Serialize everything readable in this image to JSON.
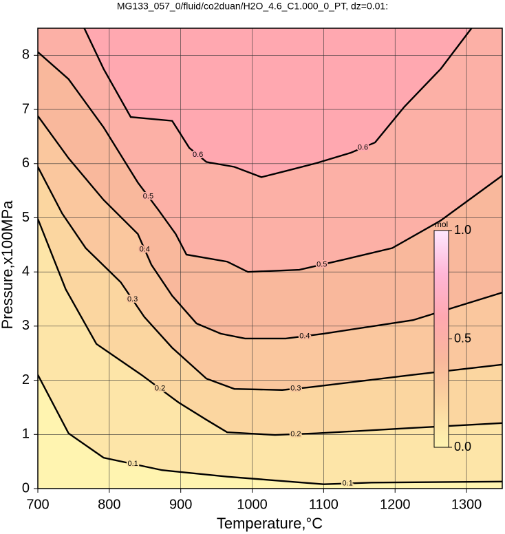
{
  "chart_data": {
    "type": "contour",
    "title": "MG133_057_0/fluid/co2duan/H2O_4.6_C1.000_0_PT, dz=0.01:",
    "xlabel": "Temperature,°C",
    "ylabel": "Pressure,x100MPa",
    "xlim": [
      700,
      1350
    ],
    "ylim": [
      0,
      8.5
    ],
    "xticks": [
      700,
      800,
      900,
      1000,
      1100,
      1200,
      1300
    ],
    "yticks": [
      0,
      1,
      2,
      3,
      4,
      5,
      6,
      7,
      8
    ],
    "grid": true,
    "colormap": [
      "#fff4b0",
      "#fbd6a0",
      "#f9b89c",
      "#ffa8b0",
      "#ffb6d6",
      "#ffe8ff"
    ],
    "colorbar": {
      "label": "mol",
      "lim": [
        0,
        1
      ],
      "ticks": [
        {
          "value": 0,
          "label": "0.0"
        },
        0.5,
        {
          "value": 1,
          "label": "1.0"
        }
      ]
    },
    "contours": [
      {
        "level": 0.1,
        "x": [
          700,
          743,
          792,
          874,
          965,
          1052,
          1100,
          1167,
          1350
        ],
        "y": [
          2.1,
          1.02,
          0.57,
          0.34,
          0.22,
          0.13,
          0.08,
          0.11,
          0.13
        ]
      },
      {
        "level": 0.2,
        "x": [
          700,
          739,
          782,
          845,
          897,
          936,
          965,
          1032,
          1090,
          1225,
          1350
        ],
        "y": [
          4.98,
          3.68,
          2.67,
          2.1,
          1.59,
          1.27,
          1.04,
          0.99,
          1.02,
          1.12,
          1.21
        ]
      },
      {
        "level": 0.3,
        "x": [
          700,
          734,
          767,
          816,
          849,
          888,
          936,
          975,
          1042,
          1080,
          1225,
          1350
        ],
        "y": [
          5.94,
          5.08,
          4.44,
          3.81,
          3.17,
          2.6,
          2.03,
          1.84,
          1.82,
          1.87,
          2.1,
          2.29
        ]
      },
      {
        "level": 0.4,
        "x": [
          700,
          743,
          792,
          840,
          859,
          888,
          922,
          956,
          990,
          1047,
          1100,
          1225,
          1350
        ],
        "y": [
          6.88,
          6.1,
          5.33,
          4.7,
          4.13,
          3.56,
          3.05,
          2.86,
          2.77,
          2.77,
          2.86,
          3.11,
          3.62
        ]
      },
      {
        "level": 0.5,
        "x": [
          700,
          743,
          792,
          840,
          869,
          893,
          908,
          965,
          994,
          1066,
          1129,
          1196,
          1264,
          1350
        ],
        "y": [
          8.06,
          7.56,
          6.67,
          5.65,
          5.14,
          4.7,
          4.32,
          4.19,
          4.0,
          4.04,
          4.23,
          4.44,
          4.95,
          5.78
        ]
      },
      {
        "level": 0.6,
        "x": [
          765,
          792,
          830,
          888,
          912,
          936,
          975,
          1013,
          1052,
          1090,
          1138,
          1172,
          1213,
          1264,
          1307
        ],
        "y": [
          8.5,
          7.75,
          6.86,
          6.79,
          6.29,
          6.03,
          5.94,
          5.75,
          5.88,
          6.01,
          6.2,
          6.39,
          7.05,
          7.75,
          8.5
        ]
      }
    ]
  }
}
